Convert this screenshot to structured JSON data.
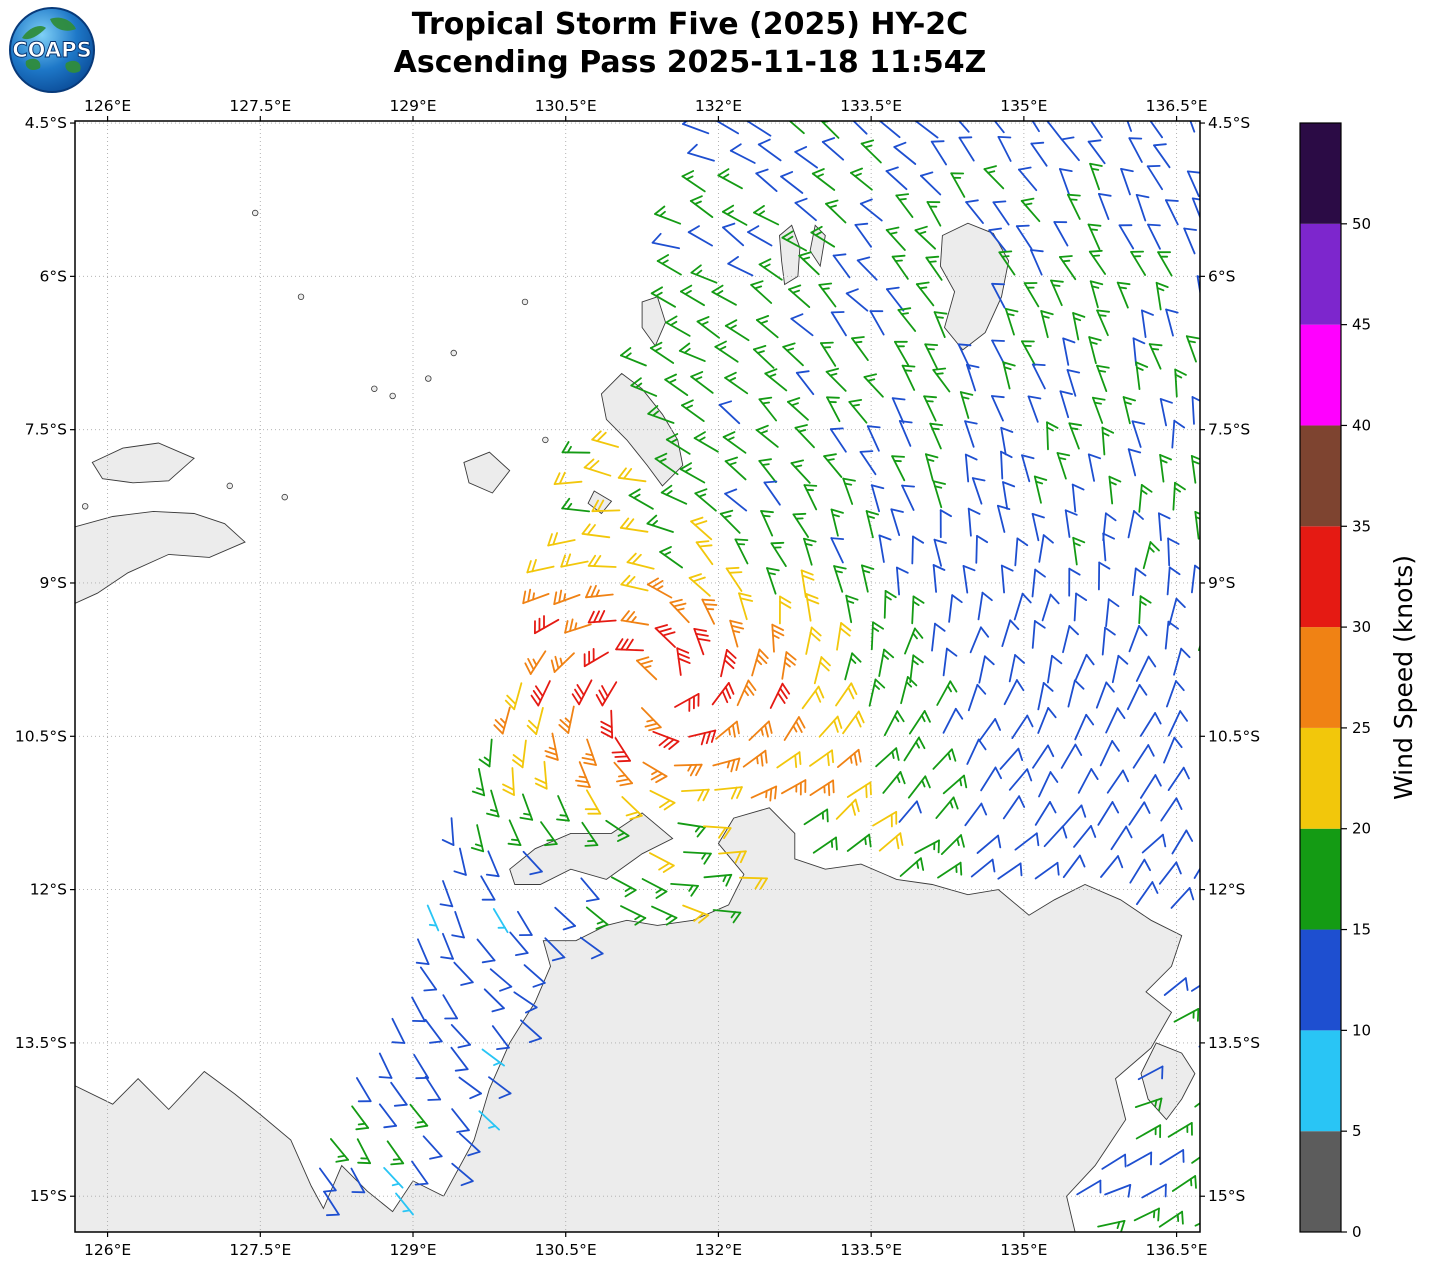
{
  "header": {
    "title_line1": "Tropical Storm Five (2025) HY-2C",
    "title_line2": "Ascending Pass 2025-11-18 11:54Z",
    "logo_text": "COAPS"
  },
  "chart_data": {
    "type": "wind_barb_map",
    "title": "Tropical Storm Five (2025) HY-2C",
    "subtitle": "Ascending Pass 2025-11-18 11:54Z",
    "axes": {
      "lon_min": 125.68,
      "lon_max": 136.73,
      "lat_min": -15.35,
      "lat_max": -4.48,
      "lon_ticks": [
        {
          "value": 126,
          "label": "126°E"
        },
        {
          "value": 127.5,
          "label": "127.5°E"
        },
        {
          "value": 129,
          "label": "129°E"
        },
        {
          "value": 130.5,
          "label": "130.5°E"
        },
        {
          "value": 132,
          "label": "132°E"
        },
        {
          "value": 133.5,
          "label": "133.5°E"
        },
        {
          "value": 135,
          "label": "135°E"
        },
        {
          "value": 136.5,
          "label": "136.5°E"
        }
      ],
      "lat_ticks": [
        {
          "value": -4.5,
          "label": "4.5°S"
        },
        {
          "value": -6,
          "label": "6°S"
        },
        {
          "value": -7.5,
          "label": "7.5°S"
        },
        {
          "value": -9,
          "label": "9°S"
        },
        {
          "value": -10.5,
          "label": "10.5°S"
        },
        {
          "value": -12,
          "label": "12°S"
        },
        {
          "value": -13.5,
          "label": "13.5°S"
        },
        {
          "value": -15,
          "label": "15°S"
        }
      ],
      "grid": true
    },
    "colorbar": {
      "label": "Wind Speed (knots)",
      "min": 0,
      "max": 55,
      "tick_values": [
        0,
        5,
        10,
        15,
        20,
        25,
        30,
        35,
        40,
        45,
        50
      ],
      "segments": [
        {
          "from": 0,
          "to": 5,
          "color": "#5c5c5c"
        },
        {
          "from": 5,
          "to": 10,
          "color": "#29c5f5"
        },
        {
          "from": 10,
          "to": 15,
          "color": "#1e4fd0"
        },
        {
          "from": 15,
          "to": 20,
          "color": "#149b14"
        },
        {
          "from": 20,
          "to": 25,
          "color": "#f2c70b"
        },
        {
          "from": 25,
          "to": 30,
          "color": "#f08214"
        },
        {
          "from": 30,
          "to": 35,
          "color": "#e51a13"
        },
        {
          "from": 35,
          "to": 40,
          "color": "#7e4430"
        },
        {
          "from": 40,
          "to": 45,
          "color": "#ff00ff"
        },
        {
          "from": 45,
          "to": 50,
          "color": "#7d26cd"
        },
        {
          "from": 50,
          "to": 55,
          "color": "#2b0b45"
        }
      ]
    },
    "storm": {
      "name": "Tropical Storm Five (2025)",
      "center_lon": 131.35,
      "center_lat": -10.05,
      "rotation": "clockwise",
      "max_wind_kt": 32,
      "inflow": 0.35,
      "wind_profile_deg_kt": [
        [
          0,
          24
        ],
        [
          0.18,
          27
        ],
        [
          0.32,
          30
        ],
        [
          0.45,
          32
        ],
        [
          0.6,
          30
        ],
        [
          0.75,
          27
        ],
        [
          0.95,
          24
        ],
        [
          1.2,
          21.8
        ],
        [
          1.5,
          19.6
        ],
        [
          1.9,
          17.2
        ],
        [
          2.4,
          15.2
        ],
        [
          3.0,
          13.4
        ],
        [
          3.8,
          12.0
        ],
        [
          4.8,
          11.2
        ],
        [
          6.0,
          11.6
        ],
        [
          7.5,
          12.2
        ],
        [
          9.5,
          12.5
        ]
      ]
    },
    "swath_polygon": [
      [
        131.95,
        -4.45
      ],
      [
        136.78,
        -4.45
      ],
      [
        136.78,
        -15.4
      ],
      [
        128.62,
        -15.4
      ],
      [
        128.02,
        -14.88
      ]
    ],
    "grid": {
      "dlon": 0.32,
      "dlat": 0.28,
      "jitter": 0.05
    },
    "land": [
      {
        "name": "australia",
        "points": [
          [
            125.68,
            -13.92
          ],
          [
            126.05,
            -14.1
          ],
          [
            126.3,
            -13.85
          ],
          [
            126.6,
            -14.15
          ],
          [
            126.95,
            -13.78
          ],
          [
            127.25,
            -14.0
          ],
          [
            127.5,
            -14.2
          ],
          [
            127.8,
            -14.45
          ],
          [
            128.0,
            -14.9
          ],
          [
            128.12,
            -15.12
          ],
          [
            128.3,
            -14.7
          ],
          [
            128.55,
            -14.95
          ],
          [
            128.8,
            -15.15
          ],
          [
            129.0,
            -14.85
          ],
          [
            129.3,
            -15.0
          ],
          [
            129.6,
            -14.45
          ],
          [
            129.75,
            -13.95
          ],
          [
            129.95,
            -13.5
          ],
          [
            130.2,
            -13.1
          ],
          [
            130.35,
            -12.75
          ],
          [
            130.28,
            -12.5
          ],
          [
            130.6,
            -12.5
          ],
          [
            130.9,
            -12.35
          ],
          [
            131.1,
            -12.3
          ],
          [
            131.4,
            -12.35
          ],
          [
            131.75,
            -12.3
          ],
          [
            132.1,
            -12.15
          ],
          [
            132.25,
            -11.85
          ],
          [
            132.0,
            -11.55
          ],
          [
            132.15,
            -11.3
          ],
          [
            132.5,
            -11.2
          ],
          [
            132.75,
            -11.45
          ],
          [
            132.75,
            -11.7
          ],
          [
            133.05,
            -11.8
          ],
          [
            133.4,
            -11.75
          ],
          [
            133.75,
            -11.9
          ],
          [
            134.1,
            -11.95
          ],
          [
            134.45,
            -12.05
          ],
          [
            134.75,
            -12.0
          ],
          [
            135.05,
            -12.25
          ],
          [
            135.3,
            -12.1
          ],
          [
            135.6,
            -11.95
          ],
          [
            135.95,
            -12.1
          ],
          [
            136.25,
            -12.3
          ],
          [
            136.55,
            -12.45
          ],
          [
            136.45,
            -12.75
          ],
          [
            136.2,
            -13.0
          ],
          [
            136.45,
            -13.2
          ],
          [
            136.25,
            -13.55
          ],
          [
            135.9,
            -13.85
          ],
          [
            136.0,
            -14.25
          ],
          [
            135.7,
            -14.7
          ],
          [
            135.42,
            -15.0
          ],
          [
            135.52,
            -15.42
          ],
          [
            125.68,
            -15.42
          ]
        ]
      },
      {
        "name": "tiwi-islands",
        "points": [
          [
            129.95,
            -11.8
          ],
          [
            130.2,
            -11.6
          ],
          [
            130.55,
            -11.45
          ],
          [
            130.95,
            -11.45
          ],
          [
            131.25,
            -11.25
          ],
          [
            131.55,
            -11.5
          ],
          [
            131.25,
            -11.65
          ],
          [
            130.9,
            -11.9
          ],
          [
            130.55,
            -11.8
          ],
          [
            130.25,
            -11.95
          ],
          [
            130.0,
            -11.95
          ]
        ]
      },
      {
        "name": "timor",
        "points": [
          [
            125.68,
            -8.45
          ],
          [
            126.05,
            -8.35
          ],
          [
            126.45,
            -8.3
          ],
          [
            126.85,
            -8.32
          ],
          [
            127.15,
            -8.42
          ],
          [
            127.35,
            -8.6
          ],
          [
            127.0,
            -8.75
          ],
          [
            126.6,
            -8.72
          ],
          [
            126.2,
            -8.9
          ],
          [
            125.9,
            -9.1
          ],
          [
            125.68,
            -9.2
          ]
        ]
      },
      {
        "name": "wetar",
        "points": [
          [
            125.85,
            -7.82
          ],
          [
            126.15,
            -7.68
          ],
          [
            126.5,
            -7.63
          ],
          [
            126.85,
            -7.78
          ],
          [
            126.6,
            -8.0
          ],
          [
            126.25,
            -8.02
          ],
          [
            125.95,
            -7.98
          ]
        ]
      },
      {
        "name": "babar",
        "points": [
          [
            129.5,
            -7.82
          ],
          [
            129.75,
            -7.72
          ],
          [
            129.95,
            -7.9
          ],
          [
            129.78,
            -8.12
          ],
          [
            129.55,
            -8.02
          ]
        ]
      },
      {
        "name": "tanimbar",
        "points": [
          [
            130.85,
            -7.15
          ],
          [
            131.05,
            -6.95
          ],
          [
            131.25,
            -7.1
          ],
          [
            131.45,
            -7.35
          ],
          [
            131.6,
            -7.6
          ],
          [
            131.65,
            -7.85
          ],
          [
            131.45,
            -8.05
          ],
          [
            131.3,
            -7.85
          ],
          [
            131.1,
            -7.6
          ],
          [
            130.9,
            -7.4
          ]
        ]
      },
      {
        "name": "tanimbar-north",
        "points": [
          [
            131.25,
            -6.25
          ],
          [
            131.4,
            -6.2
          ],
          [
            131.48,
            -6.45
          ],
          [
            131.38,
            -6.68
          ],
          [
            131.25,
            -6.5
          ]
        ]
      },
      {
        "name": "selaru",
        "points": [
          [
            130.78,
            -8.1
          ],
          [
            130.95,
            -8.2
          ],
          [
            130.85,
            -8.32
          ],
          [
            130.72,
            -8.22
          ]
        ]
      },
      {
        "name": "kai-kecil",
        "points": [
          [
            132.6,
            -5.6
          ],
          [
            132.72,
            -5.5
          ],
          [
            132.8,
            -5.72
          ],
          [
            132.78,
            -6.0
          ],
          [
            132.65,
            -6.08
          ],
          [
            132.62,
            -5.85
          ]
        ]
      },
      {
        "name": "kai-besar",
        "points": [
          [
            132.95,
            -5.5
          ],
          [
            133.05,
            -5.6
          ],
          [
            133.0,
            -5.9
          ],
          [
            132.9,
            -5.75
          ]
        ]
      },
      {
        "name": "aru-islands",
        "points": [
          [
            134.2,
            -5.6
          ],
          [
            134.45,
            -5.48
          ],
          [
            134.7,
            -5.58
          ],
          [
            134.85,
            -5.85
          ],
          [
            134.78,
            -6.2
          ],
          [
            134.62,
            -6.55
          ],
          [
            134.4,
            -6.72
          ],
          [
            134.22,
            -6.5
          ],
          [
            134.32,
            -6.15
          ],
          [
            134.18,
            -5.9
          ]
        ]
      },
      {
        "name": "groote-eylandt",
        "points": [
          [
            136.3,
            -13.5
          ],
          [
            136.55,
            -13.6
          ],
          [
            136.68,
            -13.8
          ],
          [
            136.55,
            -14.05
          ],
          [
            136.4,
            -14.25
          ],
          [
            136.22,
            -14.05
          ],
          [
            136.15,
            -13.8
          ]
        ]
      }
    ],
    "land_dots": [
      [
        127.45,
        -5.38
      ],
      [
        127.9,
        -6.2
      ],
      [
        130.1,
        -6.25
      ],
      [
        129.4,
        -6.75
      ],
      [
        129.15,
        -7.0
      ],
      [
        128.62,
        -7.1
      ],
      [
        128.8,
        -7.17
      ],
      [
        127.2,
        -8.05
      ],
      [
        127.74,
        -8.16
      ],
      [
        130.3,
        -7.6
      ],
      [
        125.78,
        -8.25
      ]
    ]
  }
}
